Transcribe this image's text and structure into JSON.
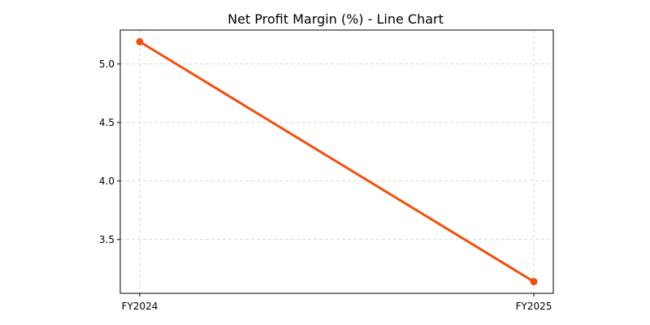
{
  "colors": {
    "series_line": "#f05010",
    "grid": "#cfcfcf",
    "axes": "#000000",
    "background": "#ffffff"
  },
  "chart_data": {
    "type": "line",
    "title": "Net Profit Margin (%) - Line Chart",
    "xlabel": "",
    "ylabel": "",
    "categories": [
      "FY2024",
      "FY2025"
    ],
    "series": [
      {
        "values": [
          5.19,
          3.14
        ],
        "color": "#f05010",
        "marker": "circle"
      }
    ],
    "ylim": [
      3.04,
      5.29
    ],
    "yticks": [
      3.5,
      4.0,
      4.5,
      5.0
    ],
    "ytick_labels": [
      "3.5",
      "4.0",
      "4.5",
      "5.0"
    ],
    "grid": true,
    "legend": "none"
  }
}
